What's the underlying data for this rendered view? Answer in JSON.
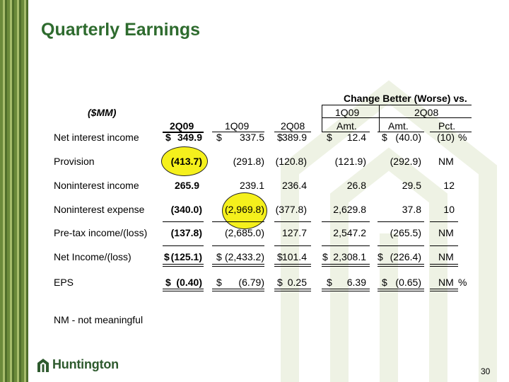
{
  "slide": {
    "title": "Quarterly Earnings",
    "page_number": "30",
    "logo_text": "Huntington",
    "footnote": "NM - not meaningful"
  },
  "table": {
    "units": "($MM)",
    "group_header": "Change Better (Worse) vs.",
    "sub_headers": {
      "vs_1q09": "1Q09",
      "vs_2q08": "2Q08"
    },
    "columns": [
      "2Q09",
      "1Q09",
      "2Q08",
      "Amt.",
      "Amt.",
      "Pct."
    ],
    "rows": [
      {
        "label": "Net interest income",
        "c2q09_sym": "$",
        "c2q09": "349.9",
        "c1q09_sym": "$",
        "c1q09": "337.5",
        "c2q08_sym": "$",
        "c2q08": "389.9",
        "a1_sym": "$",
        "a1": "12.4",
        "a2_sym": "$",
        "a2": "(40.0)",
        "pct": "(10)",
        "pct_suffix": "%"
      },
      {
        "label": "Provision",
        "c2q09": "(413.7)",
        "c1q09": "(291.8)",
        "c2q08": "(120.8)",
        "a1": "(121.9)",
        "a2": "(292.9)",
        "pct": "NM"
      },
      {
        "label": "Noninterest income",
        "c2q09": "265.9",
        "c1q09": "239.1",
        "c2q08": "236.4",
        "a1": "26.8",
        "a2": "29.5",
        "pct": "12"
      },
      {
        "label": "Noninterest expense",
        "c2q09": "(340.0)",
        "c1q09": "(2,969.8)",
        "c2q08": "(377.8)",
        "a1": "2,629.8",
        "a2": "37.8",
        "pct": "10"
      },
      {
        "label": "Pre-tax income/(loss)",
        "c2q09": "(137.8)",
        "c1q09": "(2,685.0)",
        "c2q08": "127.7",
        "a1": "2,547.2",
        "a2": "(265.5)",
        "pct": "NM"
      },
      {
        "label": "Net Income/(loss)",
        "c2q09_sym": "$",
        "c2q09": "(125.1)",
        "c1q09_sym": "$",
        "c1q09": "(2,433.2)",
        "c2q08_sym": "$",
        "c2q08": "101.4",
        "a1_sym": "$",
        "a1": "2,308.1",
        "a2_sym": "$",
        "a2": "(226.4)",
        "pct": "NM"
      },
      {
        "label": "EPS",
        "c2q09_sym": "$",
        "c2q09": "(0.40)",
        "c1q09_sym": "$",
        "c1q09": "(6.79)",
        "c2q08_sym": "$",
        "c2q08": "0.25",
        "a1_sym": "$",
        "a1": "6.39",
        "a2_sym": "$",
        "a2": "(0.65)",
        "pct": "NM",
        "pct_suffix": "%"
      }
    ]
  },
  "colors": {
    "title": "#2e6b2e",
    "highlight": "#f5f01c",
    "stripe_dark": "#4f6e2a",
    "stripe_light": "#a7bd6c"
  }
}
